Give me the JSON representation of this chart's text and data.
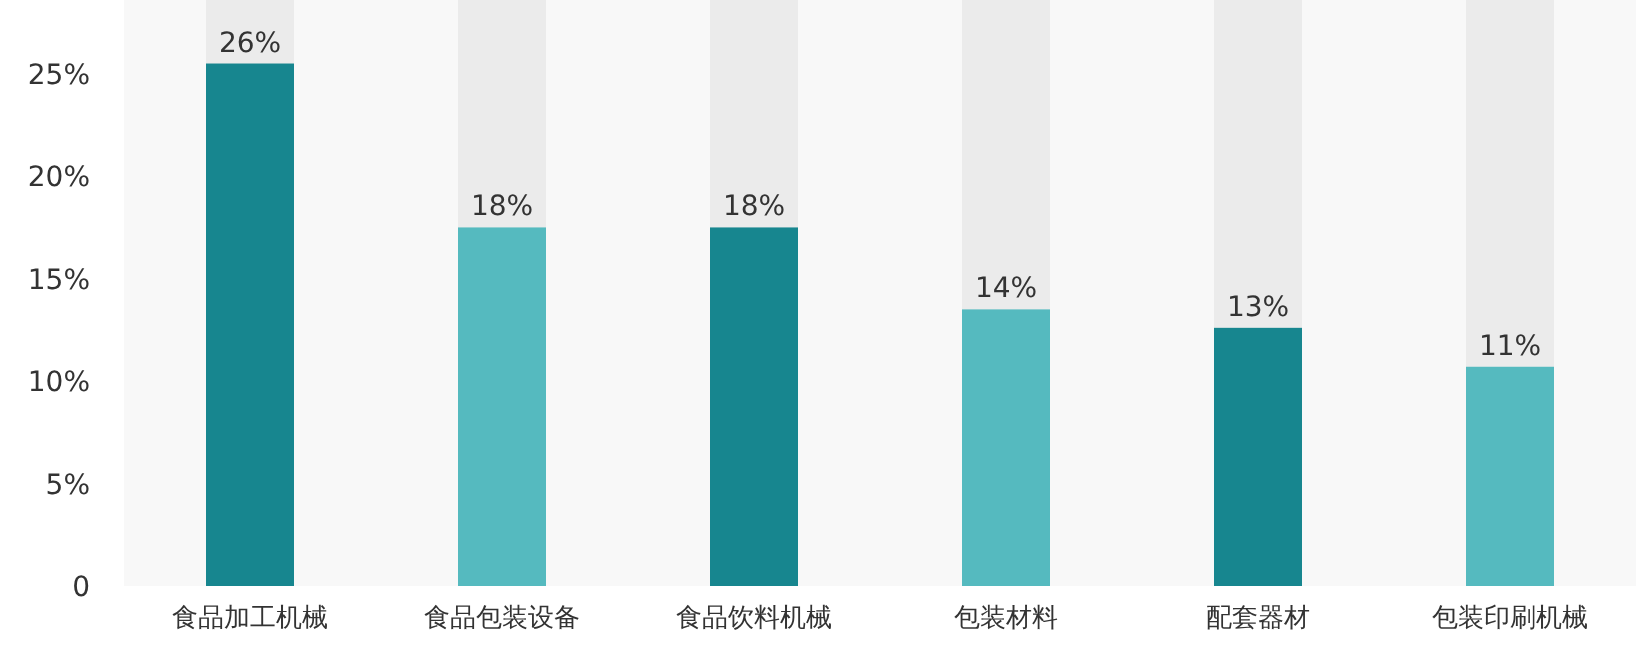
{
  "chart_data": {
    "type": "bar",
    "categories": [
      "食品加工机械",
      "食品包装设备",
      "食品饮料机械",
      "包装材料",
      "配套器材",
      "包装印刷机械"
    ],
    "values": [
      25.5,
      17.5,
      17.5,
      13.5,
      12.6,
      10.7
    ],
    "value_labels": [
      "26%",
      "18%",
      "18%",
      "14%",
      "13%",
      "11%"
    ],
    "colors": [
      "#17868f",
      "#55babf",
      "#17868f",
      "#55babf",
      "#17868f",
      "#55babf"
    ],
    "ylim": [
      0,
      28.6
    ],
    "yticks": [
      {
        "value": 0,
        "label": "0"
      },
      {
        "value": 5,
        "label": "5%"
      },
      {
        "value": 10,
        "label": "10%"
      },
      {
        "value": 15,
        "label": "15%"
      },
      {
        "value": 20,
        "label": "20%"
      },
      {
        "value": 25,
        "label": "25%"
      }
    ],
    "grid": false
  }
}
